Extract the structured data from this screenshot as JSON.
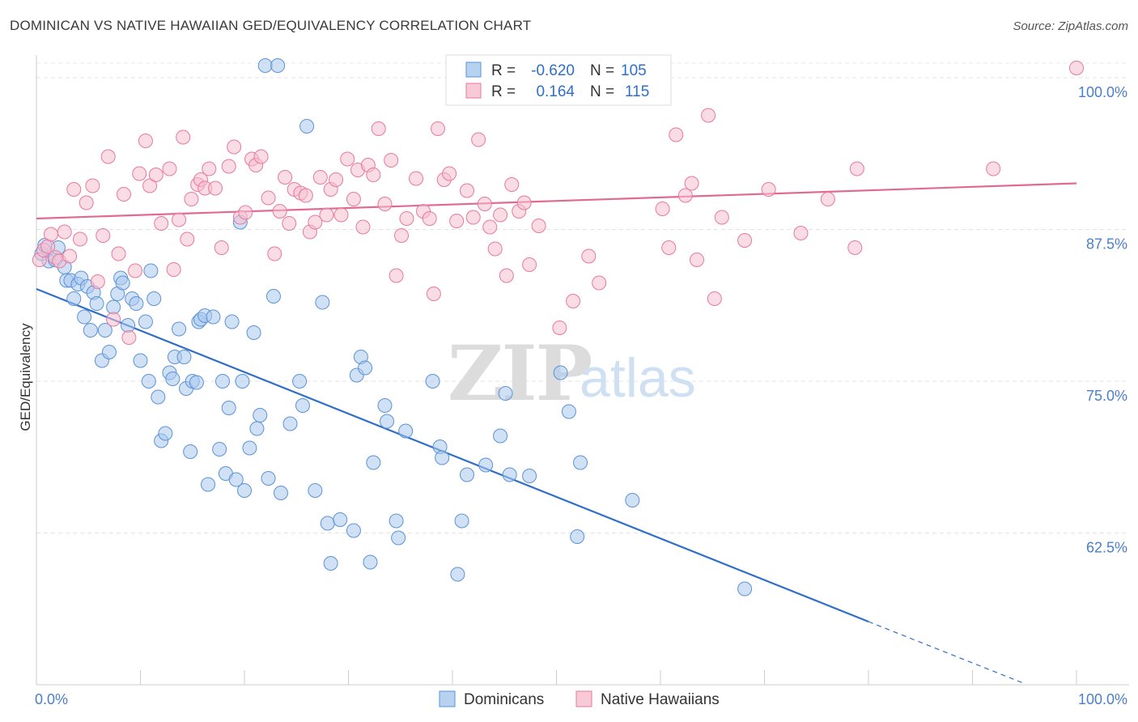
{
  "title": "DOMINICAN VS NATIVE HAWAIIAN GED/EQUIVALENCY CORRELATION CHART",
  "source": "Source: ZipAtlas.com",
  "watermark": {
    "zip": "ZIP",
    "atlas": "atlas"
  },
  "legend_stats": [
    {
      "r_label": "R =",
      "r_value": "-0.620",
      "n_label": "N =",
      "n_value": "105",
      "color": "#5b93d6"
    },
    {
      "r_label": "R =",
      "r_value": "0.164",
      "n_label": "N =",
      "n_value": "115",
      "color": "#e8799e"
    }
  ],
  "chart_data": {
    "type": "scatter",
    "title": "DOMINICAN VS NATIVE HAWAIIAN GED/EQUIVALENCY CORRELATION CHART",
    "xlabel": "",
    "ylabel": "GED/Equivalency",
    "xlim": [
      0,
      100
    ],
    "ylim": [
      50,
      101
    ],
    "x_tick_labels": [
      "0.0%",
      "100.0%"
    ],
    "y_ticks": [
      62.5,
      75.0,
      87.5,
      100.0
    ],
    "y_tick_labels": [
      "62.5%",
      "75.0%",
      "87.5%",
      "100.0%"
    ],
    "grid": true,
    "legend_position": "bottom-center",
    "series": [
      {
        "name": "Dominicans",
        "color": "#5b93d6",
        "fill": "#a9c8ee",
        "r": -0.62,
        "n": 105,
        "trend": {
          "x0": 0,
          "y0": 82.6,
          "x1": 80,
          "y1": 55.2,
          "dash_to_x": 95,
          "dash_to_y": 50.1
        },
        "points": [
          [
            0.5,
            85.5
          ],
          [
            0.8,
            86.2
          ],
          [
            1.2,
            84.9
          ],
          [
            1.8,
            85.0
          ],
          [
            2.1,
            86.0
          ],
          [
            2.7,
            84.4
          ],
          [
            2.9,
            83.3
          ],
          [
            3.3,
            83.3
          ],
          [
            3.6,
            81.8
          ],
          [
            4.0,
            83.0
          ],
          [
            4.3,
            83.5
          ],
          [
            4.6,
            80.3
          ],
          [
            4.9,
            82.8
          ],
          [
            5.2,
            79.2
          ],
          [
            5.5,
            82.3
          ],
          [
            5.8,
            81.4
          ],
          [
            6.3,
            76.7
          ],
          [
            6.6,
            79.2
          ],
          [
            7.0,
            77.4
          ],
          [
            7.4,
            81.1
          ],
          [
            7.8,
            82.2
          ],
          [
            8.1,
            83.5
          ],
          [
            8.3,
            83.1
          ],
          [
            8.8,
            79.6
          ],
          [
            9.2,
            81.8
          ],
          [
            9.6,
            81.4
          ],
          [
            10.0,
            76.7
          ],
          [
            10.5,
            79.9
          ],
          [
            10.8,
            75.0
          ],
          [
            11.0,
            84.1
          ],
          [
            11.3,
            81.8
          ],
          [
            11.7,
            73.7
          ],
          [
            12.0,
            70.1
          ],
          [
            12.4,
            70.7
          ],
          [
            12.8,
            75.7
          ],
          [
            13.1,
            75.2
          ],
          [
            13.3,
            77.0
          ],
          [
            13.7,
            79.3
          ],
          [
            14.2,
            77.0
          ],
          [
            14.4,
            74.4
          ],
          [
            14.8,
            69.2
          ],
          [
            15.0,
            75.0
          ],
          [
            15.4,
            74.9
          ],
          [
            15.6,
            79.9
          ],
          [
            15.8,
            80.1
          ],
          [
            16.2,
            80.4
          ],
          [
            16.5,
            66.5
          ],
          [
            17.0,
            80.3
          ],
          [
            17.6,
            69.4
          ],
          [
            17.9,
            75.0
          ],
          [
            18.2,
            67.4
          ],
          [
            18.5,
            72.8
          ],
          [
            18.8,
            79.9
          ],
          [
            19.2,
            66.9
          ],
          [
            19.6,
            88.1
          ],
          [
            19.8,
            75.0
          ],
          [
            20.0,
            66.0
          ],
          [
            20.5,
            69.5
          ],
          [
            20.9,
            79.0
          ],
          [
            21.2,
            71.1
          ],
          [
            21.5,
            72.2
          ],
          [
            22.0,
            101.0
          ],
          [
            22.3,
            67.0
          ],
          [
            22.8,
            82.0
          ],
          [
            23.2,
            101.0
          ],
          [
            23.5,
            65.8
          ],
          [
            24.4,
            71.5
          ],
          [
            25.3,
            75.0
          ],
          [
            25.6,
            73.0
          ],
          [
            26.0,
            96.0
          ],
          [
            26.8,
            66.0
          ],
          [
            27.5,
            81.5
          ],
          [
            28.0,
            63.3
          ],
          [
            28.3,
            60.0
          ],
          [
            29.2,
            63.6
          ],
          [
            30.5,
            62.7
          ],
          [
            30.8,
            75.5
          ],
          [
            31.2,
            77.0
          ],
          [
            31.6,
            76.1
          ],
          [
            32.1,
            60.1
          ],
          [
            32.4,
            68.3
          ],
          [
            33.5,
            73.0
          ],
          [
            33.7,
            71.7
          ],
          [
            34.6,
            63.5
          ],
          [
            34.8,
            62.1
          ],
          [
            35.5,
            70.9
          ],
          [
            38.1,
            75.0
          ],
          [
            38.8,
            69.6
          ],
          [
            39.0,
            68.7
          ],
          [
            40.5,
            59.1
          ],
          [
            40.9,
            63.5
          ],
          [
            41.4,
            67.3
          ],
          [
            43.2,
            68.1
          ],
          [
            44.6,
            70.5
          ],
          [
            45.1,
            74.0
          ],
          [
            45.5,
            67.3
          ],
          [
            47.4,
            67.2
          ],
          [
            50.4,
            75.7
          ],
          [
            51.2,
            72.5
          ],
          [
            52.0,
            62.2
          ],
          [
            52.3,
            68.3
          ],
          [
            57.3,
            65.2
          ],
          [
            68.1,
            57.9
          ]
        ]
      },
      {
        "name": "Native Hawaiians",
        "color": "#e8799e",
        "fill": "#f6bfd0",
        "r": 0.164,
        "n": 115,
        "trend": {
          "x0": 0,
          "y0": 88.4,
          "x1": 100,
          "y1": 91.3
        },
        "points": [
          [
            0.3,
            85.0
          ],
          [
            0.7,
            85.8
          ],
          [
            1.1,
            86.1
          ],
          [
            1.4,
            87.1
          ],
          [
            1.8,
            85.2
          ],
          [
            2.2,
            84.9
          ],
          [
            2.7,
            87.3
          ],
          [
            3.2,
            85.3
          ],
          [
            3.6,
            90.8
          ],
          [
            4.2,
            86.7
          ],
          [
            4.8,
            89.7
          ],
          [
            5.4,
            91.1
          ],
          [
            5.9,
            83.2
          ],
          [
            6.4,
            87.0
          ],
          [
            6.9,
            93.5
          ],
          [
            7.4,
            80.1
          ],
          [
            7.9,
            85.5
          ],
          [
            8.4,
            90.4
          ],
          [
            8.9,
            78.6
          ],
          [
            9.5,
            84.1
          ],
          [
            9.9,
            92.1
          ],
          [
            10.5,
            94.8
          ],
          [
            10.9,
            91.1
          ],
          [
            11.5,
            92.0
          ],
          [
            12.0,
            88.0
          ],
          [
            12.8,
            92.5
          ],
          [
            13.2,
            84.2
          ],
          [
            13.7,
            88.3
          ],
          [
            14.1,
            95.1
          ],
          [
            14.5,
            86.7
          ],
          [
            14.9,
            90.0
          ],
          [
            15.5,
            91.2
          ],
          [
            15.8,
            91.6
          ],
          [
            16.2,
            90.9
          ],
          [
            16.6,
            92.5
          ],
          [
            17.2,
            90.9
          ],
          [
            17.8,
            86.0
          ],
          [
            18.5,
            92.7
          ],
          [
            19.0,
            94.3
          ],
          [
            19.6,
            88.5
          ],
          [
            20.1,
            88.9
          ],
          [
            20.7,
            93.3
          ],
          [
            21.1,
            92.8
          ],
          [
            21.6,
            93.5
          ],
          [
            22.3,
            90.1
          ],
          [
            22.9,
            85.5
          ],
          [
            23.4,
            89.0
          ],
          [
            23.9,
            91.8
          ],
          [
            24.3,
            88.0
          ],
          [
            24.8,
            90.8
          ],
          [
            25.4,
            90.5
          ],
          [
            25.9,
            90.3
          ],
          [
            26.3,
            87.3
          ],
          [
            26.8,
            88.1
          ],
          [
            27.3,
            91.8
          ],
          [
            27.9,
            88.7
          ],
          [
            28.3,
            90.8
          ],
          [
            28.8,
            91.6
          ],
          [
            29.3,
            88.7
          ],
          [
            29.9,
            93.3
          ],
          [
            30.5,
            90.0
          ],
          [
            30.9,
            92.4
          ],
          [
            31.4,
            87.7
          ],
          [
            31.9,
            92.8
          ],
          [
            32.4,
            92.0
          ],
          [
            32.9,
            95.8
          ],
          [
            33.5,
            89.6
          ],
          [
            34.1,
            93.2
          ],
          [
            34.6,
            83.7
          ],
          [
            35.1,
            87.0
          ],
          [
            35.6,
            88.4
          ],
          [
            36.5,
            91.7
          ],
          [
            37.2,
            89.0
          ],
          [
            37.8,
            88.4
          ],
          [
            38.2,
            82.2
          ],
          [
            38.6,
            95.8
          ],
          [
            39.2,
            91.6
          ],
          [
            39.7,
            92.1
          ],
          [
            40.4,
            88.2
          ],
          [
            41.4,
            90.7
          ],
          [
            42.0,
            88.5
          ],
          [
            42.5,
            94.9
          ],
          [
            43.1,
            89.6
          ],
          [
            43.6,
            87.7
          ],
          [
            44.1,
            85.9
          ],
          [
            44.6,
            88.7
          ],
          [
            45.2,
            83.7
          ],
          [
            45.7,
            91.2
          ],
          [
            46.4,
            89.0
          ],
          [
            46.9,
            89.7
          ],
          [
            47.4,
            84.6
          ],
          [
            48.3,
            87.8
          ],
          [
            50.3,
            79.4
          ],
          [
            51.6,
            81.6
          ],
          [
            53.1,
            85.3
          ],
          [
            54.1,
            83.1
          ],
          [
            57.3,
            99.7
          ],
          [
            57.8,
            100.8
          ],
          [
            60.2,
            89.2
          ],
          [
            60.8,
            86.0
          ],
          [
            61.5,
            95.3
          ],
          [
            62.4,
            90.3
          ],
          [
            63.0,
            91.3
          ],
          [
            63.5,
            85.0
          ],
          [
            64.6,
            96.9
          ],
          [
            65.2,
            81.8
          ],
          [
            65.9,
            88.5
          ],
          [
            68.1,
            86.6
          ],
          [
            70.4,
            90.8
          ],
          [
            73.5,
            87.2
          ],
          [
            76.1,
            90.0
          ],
          [
            78.7,
            86.0
          ],
          [
            78.9,
            92.5
          ],
          [
            92.0,
            92.5
          ],
          [
            100.0,
            100.8
          ]
        ]
      }
    ]
  }
}
